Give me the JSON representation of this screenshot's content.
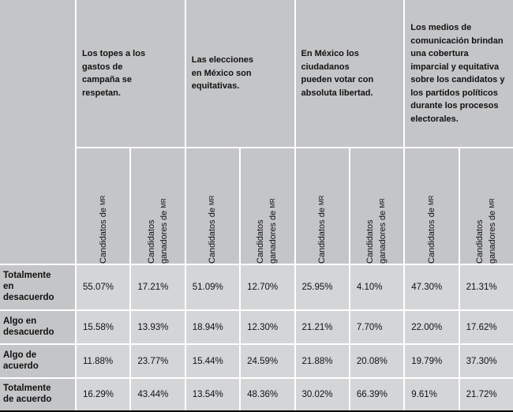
{
  "colors": {
    "header_bg": "#c4c5c7",
    "cell_bg": "#d4d5d7",
    "grid": "#ffffff",
    "text": "#111111",
    "bottom_rule": "#000000"
  },
  "chart_data": {
    "type": "table",
    "questions": [
      "Los topes a los gastos de campaña se respetan.",
      "Las elecciones en México son equitativas.",
      "En México los ciudadanos pueden votar con absoluta libertad.",
      "Los medios de comunicación brindan una cobertura imparcial y equitativa sobre los candidatos y los partidos políticos durante los procesos electorales."
    ],
    "sub_columns": {
      "a": {
        "full": "Candidatos de MR",
        "main": "Candidatos de",
        "caps": "MR"
      },
      "b": {
        "full": "Candidatos ganadores de MR",
        "line1": "Candidatos",
        "line2": "ganadores de",
        "caps": "MR"
      }
    },
    "rows": [
      {
        "label": "Totalmente en desacuerdo",
        "values": [
          "55.07%",
          "17.21%",
          "51.09%",
          "12.70%",
          "25.95%",
          "4.10%",
          "47.30%",
          "21.31%"
        ]
      },
      {
        "label": "Algo en desacuerdo",
        "values": [
          "15.58%",
          "13.93%",
          "18.94%",
          "12.30%",
          "21.21%",
          "7.70%",
          "22.00%",
          "17.62%"
        ]
      },
      {
        "label": "Algo de acuerdo",
        "values": [
          "11.88%",
          "23.77%",
          "15.44%",
          "24.59%",
          "21.88%",
          "20.08%",
          "19.79%",
          "37.30%"
        ]
      },
      {
        "label": "Totalmente de acuerdo",
        "values": [
          "16.29%",
          "43.44%",
          "13.54%",
          "48.36%",
          "30.02%",
          "66.39%",
          "9.61%",
          "21.72%"
        ]
      }
    ]
  }
}
